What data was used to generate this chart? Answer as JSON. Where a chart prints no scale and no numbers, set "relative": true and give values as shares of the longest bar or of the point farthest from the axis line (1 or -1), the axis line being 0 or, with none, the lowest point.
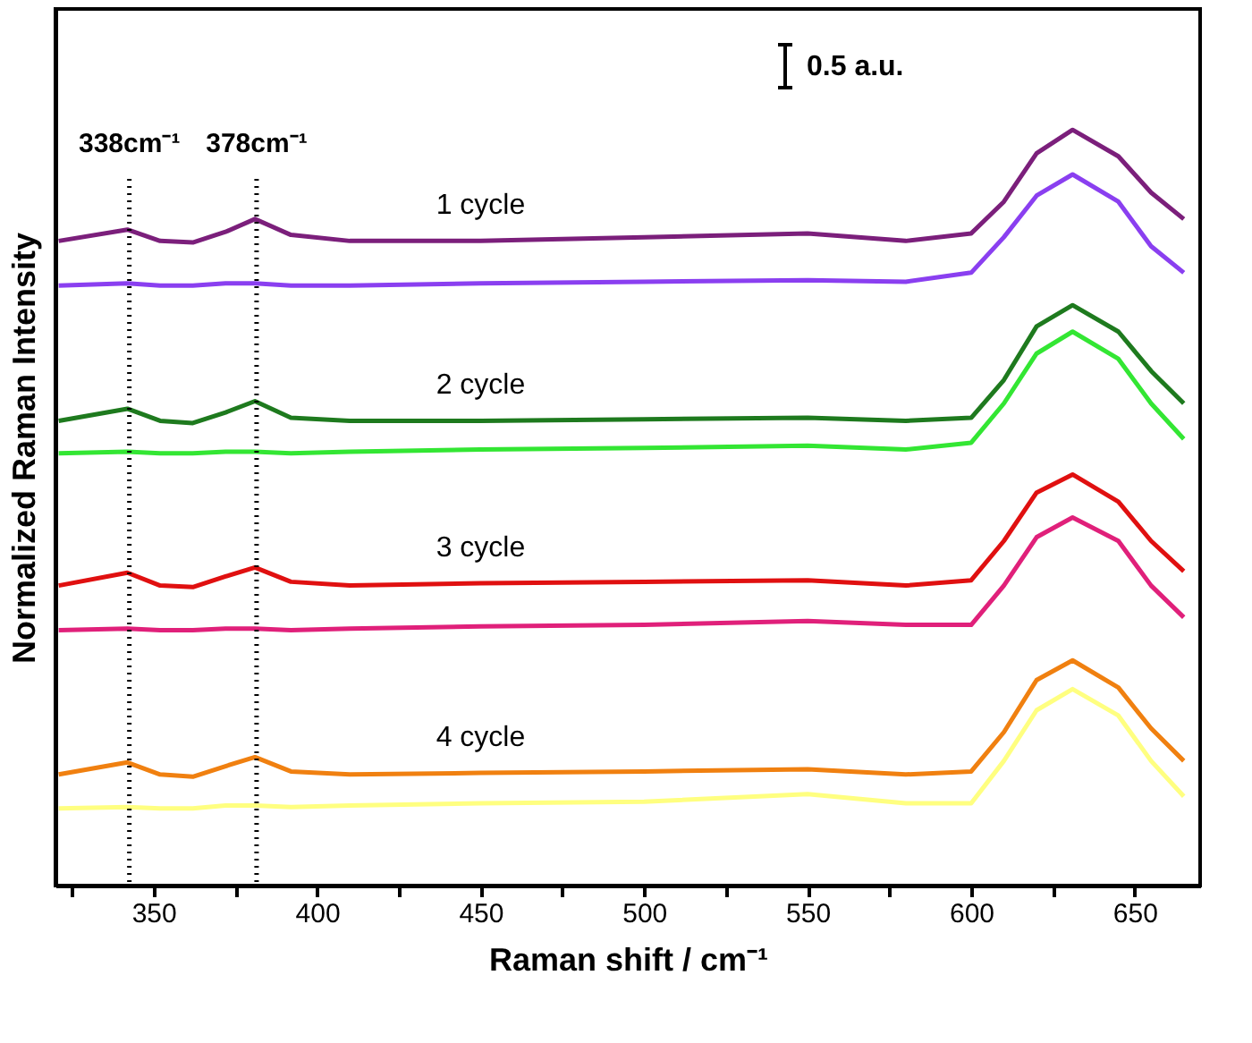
{
  "chart_data": {
    "type": "line",
    "xlabel": "Raman shift / cm⁻¹",
    "ylabel": "Normalized Raman Intensity",
    "relative": true,
    "tick_labels": "x",
    "grid": false,
    "legend": false,
    "line_style": "solid",
    "marker": "none",
    "x": [
      321,
      342,
      352,
      362,
      372,
      381,
      392,
      410,
      450,
      500,
      550,
      580,
      600,
      610,
      620,
      631,
      645,
      655,
      665
    ],
    "xlim": [
      320,
      670
    ],
    "xticks": [
      {
        "value": 325,
        "label": null
      },
      350,
      {
        "value": 375,
        "label": null
      },
      400,
      {
        "value": 425,
        "label": null
      },
      450,
      {
        "value": 475,
        "label": null
      },
      500,
      {
        "value": 525,
        "label": null
      },
      550,
      {
        "value": 575,
        "label": null
      },
      600,
      {
        "value": 625,
        "label": null
      },
      650
    ],
    "series": [
      {
        "color": "#7b1f7b",
        "values": [
          0.853,
          0.868,
          0.853,
          0.851,
          0.865,
          0.882,
          0.861,
          0.853,
          0.853,
          0.858,
          0.863,
          0.853,
          0.863,
          0.905,
          0.969,
          1,
          0.965,
          0.917,
          0.882
        ]
      },
      {
        "color": "#8a3ff0",
        "values": [
          0.794,
          0.797,
          0.794,
          0.794,
          0.797,
          0.797,
          0.794,
          0.794,
          0.797,
          0.799,
          0.801,
          0.799,
          0.811,
          0.858,
          0.913,
          0.941,
          0.905,
          0.846,
          0.811
        ]
      },
      {
        "color": "#1e7a1e",
        "values": [
          0.615,
          0.631,
          0.615,
          0.612,
          0.626,
          0.641,
          0.619,
          0.615,
          0.615,
          0.617,
          0.619,
          0.615,
          0.619,
          0.669,
          0.74,
          0.768,
          0.733,
          0.681,
          0.638
        ]
      },
      {
        "color": "#33e633",
        "values": [
          0.572,
          0.574,
          0.572,
          0.572,
          0.574,
          0.574,
          0.572,
          0.574,
          0.577,
          0.579,
          0.582,
          0.577,
          0.586,
          0.638,
          0.704,
          0.733,
          0.697,
          0.638,
          0.591
        ]
      },
      {
        "color": "#e01010",
        "values": [
          0.397,
          0.414,
          0.397,
          0.395,
          0.409,
          0.421,
          0.402,
          0.397,
          0.4,
          0.402,
          0.404,
          0.397,
          0.404,
          0.456,
          0.52,
          0.544,
          0.508,
          0.456,
          0.416
        ]
      },
      {
        "color": "#e0207a",
        "values": [
          0.338,
          0.34,
          0.338,
          0.338,
          0.34,
          0.34,
          0.338,
          0.34,
          0.343,
          0.345,
          0.35,
          0.345,
          0.345,
          0.397,
          0.461,
          0.487,
          0.456,
          0.397,
          0.355
        ]
      },
      {
        "color": "#f08010",
        "values": [
          0.147,
          0.163,
          0.147,
          0.144,
          0.158,
          0.17,
          0.151,
          0.147,
          0.149,
          0.151,
          0.154,
          0.147,
          0.151,
          0.203,
          0.272,
          0.298,
          0.262,
          0.208,
          0.165
        ]
      },
      {
        "color": "#ffff80",
        "values": [
          0.102,
          0.104,
          0.102,
          0.102,
          0.106,
          0.106,
          0.104,
          0.106,
          0.109,
          0.111,
          0.121,
          0.109,
          0.109,
          0.165,
          0.232,
          0.26,
          0.225,
          0.165,
          0.118
        ]
      }
    ],
    "ref_lines": [
      {
        "axis": "x",
        "value": 342.6,
        "label": "338cm⁻¹",
        "line_style": "dotted",
        "color": "#000000"
      },
      {
        "axis": "x",
        "value": 381.5,
        "label": "378cm⁻¹",
        "line_style": "dotted",
        "color": "#000000"
      }
    ],
    "annotations": [
      "0.5 a.u.",
      "1 cycle",
      "2 cycle",
      "3 cycle",
      "4 cycle"
    ]
  }
}
